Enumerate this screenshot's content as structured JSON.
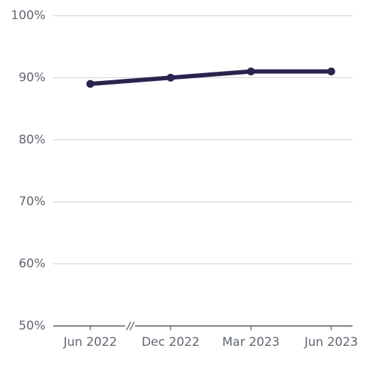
{
  "chart_data": {
    "type": "line",
    "categories": [
      "Jun 2022",
      "Dec 2022",
      "Mar 2023",
      "Jun 2023"
    ],
    "values": [
      89,
      90,
      91,
      91
    ],
    "color": "#29244f",
    "ylim": [
      50,
      100
    ],
    "yticks": [
      {
        "value": 50,
        "label": "50%"
      },
      {
        "value": 60,
        "label": "60%"
      },
      {
        "value": 70,
        "label": "70%"
      },
      {
        "value": 80,
        "label": "80%"
      },
      {
        "value": 90,
        "label": "90%"
      },
      {
        "value": 100,
        "label": "100%"
      }
    ],
    "grid": true
  }
}
